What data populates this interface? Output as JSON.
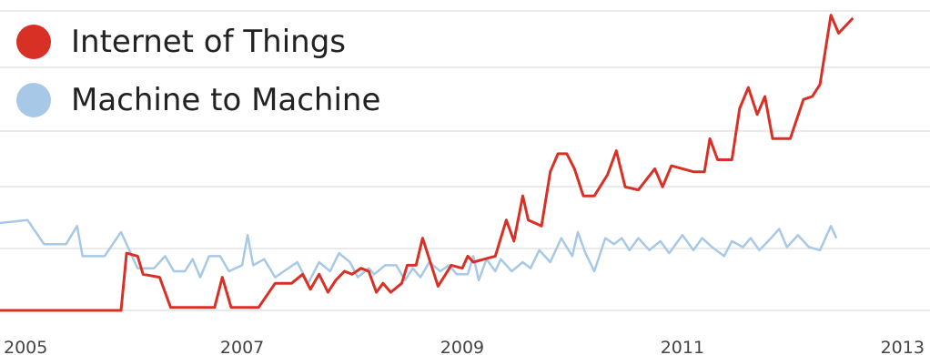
{
  "chart_data": {
    "type": "line",
    "title": "",
    "xlabel": "",
    "ylabel": "",
    "x_ticks": [
      "2005",
      "2007",
      "2009",
      "2011",
      "2013"
    ],
    "xlim": [
      2004.8,
      2013.25
    ],
    "ylim": [
      0,
      100
    ],
    "grid": true,
    "legend_position": "top-left",
    "series": [
      {
        "name": "Internet of Things",
        "color": "#d93025",
        "points": [
          [
            2004.8,
            0
          ],
          [
            2005.9,
            0
          ],
          [
            2005.95,
            19
          ],
          [
            2006.05,
            18
          ],
          [
            2006.1,
            12
          ],
          [
            2006.25,
            11
          ],
          [
            2006.35,
            1
          ],
          [
            2006.5,
            1
          ],
          [
            2006.75,
            1
          ],
          [
            2006.82,
            11
          ],
          [
            2006.9,
            1
          ],
          [
            2007.15,
            1
          ],
          [
            2007.3,
            9
          ],
          [
            2007.45,
            9
          ],
          [
            2007.55,
            12
          ],
          [
            2007.62,
            7
          ],
          [
            2007.7,
            12
          ],
          [
            2007.78,
            6
          ],
          [
            2007.85,
            10
          ],
          [
            2007.93,
            13
          ],
          [
            2008.0,
            12
          ],
          [
            2008.08,
            14
          ],
          [
            2008.15,
            13
          ],
          [
            2008.22,
            6
          ],
          [
            2008.28,
            9
          ],
          [
            2008.35,
            6
          ],
          [
            2008.45,
            9
          ],
          [
            2008.5,
            15
          ],
          [
            2008.58,
            15
          ],
          [
            2008.64,
            24
          ],
          [
            2008.78,
            8
          ],
          [
            2008.9,
            15
          ],
          [
            2009.0,
            14
          ],
          [
            2009.05,
            18
          ],
          [
            2009.1,
            16
          ],
          [
            2009.2,
            17
          ],
          [
            2009.3,
            18
          ],
          [
            2009.4,
            30
          ],
          [
            2009.47,
            23
          ],
          [
            2009.55,
            38
          ],
          [
            2009.6,
            30
          ],
          [
            2009.72,
            28
          ],
          [
            2009.8,
            46
          ],
          [
            2009.87,
            52
          ],
          [
            2009.95,
            52
          ],
          [
            2010.02,
            47
          ],
          [
            2010.1,
            38
          ],
          [
            2010.2,
            38
          ],
          [
            2010.32,
            45
          ],
          [
            2010.4,
            53
          ],
          [
            2010.48,
            41
          ],
          [
            2010.6,
            40
          ],
          [
            2010.75,
            47
          ],
          [
            2010.82,
            41
          ],
          [
            2010.9,
            48
          ],
          [
            2011.1,
            46
          ],
          [
            2011.2,
            46
          ],
          [
            2011.25,
            57
          ],
          [
            2011.32,
            50
          ],
          [
            2011.45,
            50
          ],
          [
            2011.52,
            67
          ],
          [
            2011.6,
            74
          ],
          [
            2011.68,
            65
          ],
          [
            2011.75,
            71
          ],
          [
            2011.82,
            57
          ],
          [
            2011.98,
            57
          ],
          [
            2012.1,
            70
          ],
          [
            2012.18,
            71
          ],
          [
            2012.25,
            75
          ],
          [
            2012.35,
            98
          ],
          [
            2012.42,
            92
          ],
          [
            2012.55,
            97
          ]
        ]
      },
      {
        "name": "Machine to Machine",
        "color": "#a7c8e6",
        "points": [
          [
            2004.8,
            29
          ],
          [
            2005.05,
            30
          ],
          [
            2005.2,
            22
          ],
          [
            2005.4,
            22
          ],
          [
            2005.5,
            28
          ],
          [
            2005.55,
            18
          ],
          [
            2005.75,
            18
          ],
          [
            2005.9,
            26
          ],
          [
            2006.05,
            14
          ],
          [
            2006.2,
            14
          ],
          [
            2006.3,
            18
          ],
          [
            2006.38,
            13
          ],
          [
            2006.48,
            13
          ],
          [
            2006.55,
            17
          ],
          [
            2006.62,
            11
          ],
          [
            2006.7,
            18
          ],
          [
            2006.8,
            18
          ],
          [
            2006.88,
            13
          ],
          [
            2007.0,
            15
          ],
          [
            2007.05,
            25
          ],
          [
            2007.1,
            15
          ],
          [
            2007.2,
            17
          ],
          [
            2007.3,
            11
          ],
          [
            2007.5,
            16
          ],
          [
            2007.6,
            9
          ],
          [
            2007.7,
            16
          ],
          [
            2007.8,
            13
          ],
          [
            2007.88,
            19
          ],
          [
            2007.98,
            16
          ],
          [
            2008.05,
            11
          ],
          [
            2008.15,
            14
          ],
          [
            2008.2,
            12
          ],
          [
            2008.3,
            15
          ],
          [
            2008.4,
            15
          ],
          [
            2008.48,
            10
          ],
          [
            2008.55,
            14
          ],
          [
            2008.62,
            11
          ],
          [
            2008.7,
            16
          ],
          [
            2008.8,
            13
          ],
          [
            2008.88,
            15
          ],
          [
            2008.95,
            12
          ],
          [
            2009.05,
            12
          ],
          [
            2009.1,
            18
          ],
          [
            2009.15,
            10
          ],
          [
            2009.22,
            17
          ],
          [
            2009.3,
            13
          ],
          [
            2009.35,
            17
          ],
          [
            2009.45,
            13
          ],
          [
            2009.55,
            16
          ],
          [
            2009.62,
            14
          ],
          [
            2009.7,
            20
          ],
          [
            2009.8,
            16
          ],
          [
            2009.9,
            24
          ],
          [
            2010.0,
            18
          ],
          [
            2010.05,
            26
          ],
          [
            2010.12,
            19
          ],
          [
            2010.2,
            13
          ],
          [
            2010.3,
            24
          ],
          [
            2010.38,
            22
          ],
          [
            2010.45,
            24
          ],
          [
            2010.52,
            20
          ],
          [
            2010.6,
            24
          ],
          [
            2010.7,
            20
          ],
          [
            2010.8,
            23
          ],
          [
            2010.88,
            19
          ],
          [
            2011.0,
            25
          ],
          [
            2011.1,
            20
          ],
          [
            2011.18,
            24
          ],
          [
            2011.27,
            21
          ],
          [
            2011.38,
            18
          ],
          [
            2011.45,
            23
          ],
          [
            2011.55,
            21
          ],
          [
            2011.62,
            24
          ],
          [
            2011.7,
            20
          ],
          [
            2011.78,
            23
          ],
          [
            2011.88,
            27
          ],
          [
            2011.95,
            21
          ],
          [
            2012.05,
            25
          ],
          [
            2012.15,
            21
          ],
          [
            2012.25,
            20
          ],
          [
            2012.35,
            28
          ],
          [
            2012.4,
            24
          ]
        ]
      }
    ]
  }
}
